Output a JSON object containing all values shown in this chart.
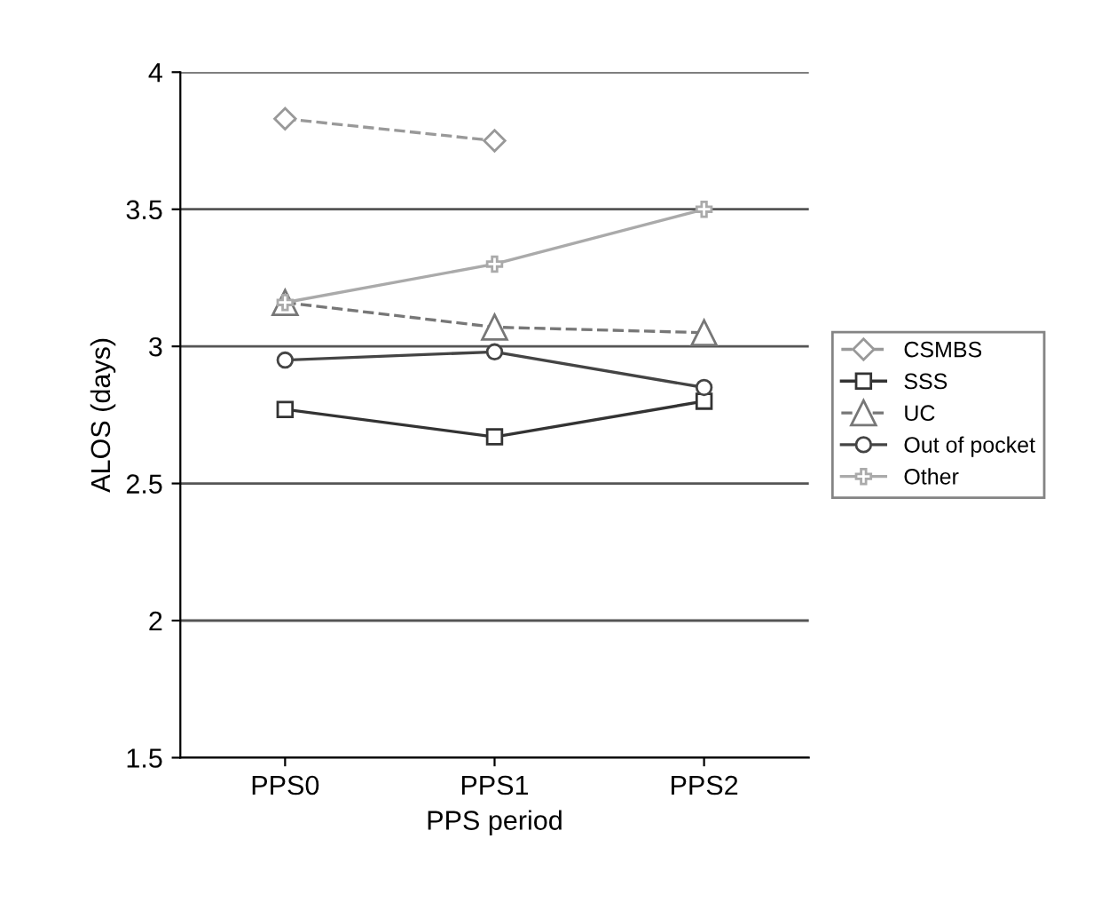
{
  "chart_data": {
    "type": "line",
    "xlabel": "PPS period",
    "ylabel": "ALOS (days)",
    "categories": [
      "PPS0",
      "PPS1",
      "PPS2"
    ],
    "series": [
      {
        "name": "CSMBS",
        "color": "#999999",
        "marker": "diamond",
        "line_style": "dashed",
        "values": [
          3.83,
          3.75,
          null
        ]
      },
      {
        "name": "SSS",
        "color": "#333333",
        "marker": "square",
        "line_style": "solid",
        "values": [
          2.77,
          2.67,
          2.8
        ]
      },
      {
        "name": "UC",
        "color": "#777777",
        "marker": "triangle",
        "line_style": "dashed",
        "values": [
          3.16,
          3.07,
          3.05
        ]
      },
      {
        "name": "Out of pocket",
        "color": "#444444",
        "marker": "circle",
        "line_style": "solid",
        "values": [
          2.95,
          2.98,
          2.85
        ]
      },
      {
        "name": "Other",
        "color": "#aaaaaa",
        "marker": "cross",
        "line_style": "solid",
        "values": [
          3.16,
          3.3,
          3.5
        ]
      }
    ],
    "ylim": [
      1.5,
      4
    ],
    "yticks": [
      1.5,
      2,
      2.5,
      3,
      3.5,
      4
    ],
    "grid": "y",
    "legend": "right"
  }
}
